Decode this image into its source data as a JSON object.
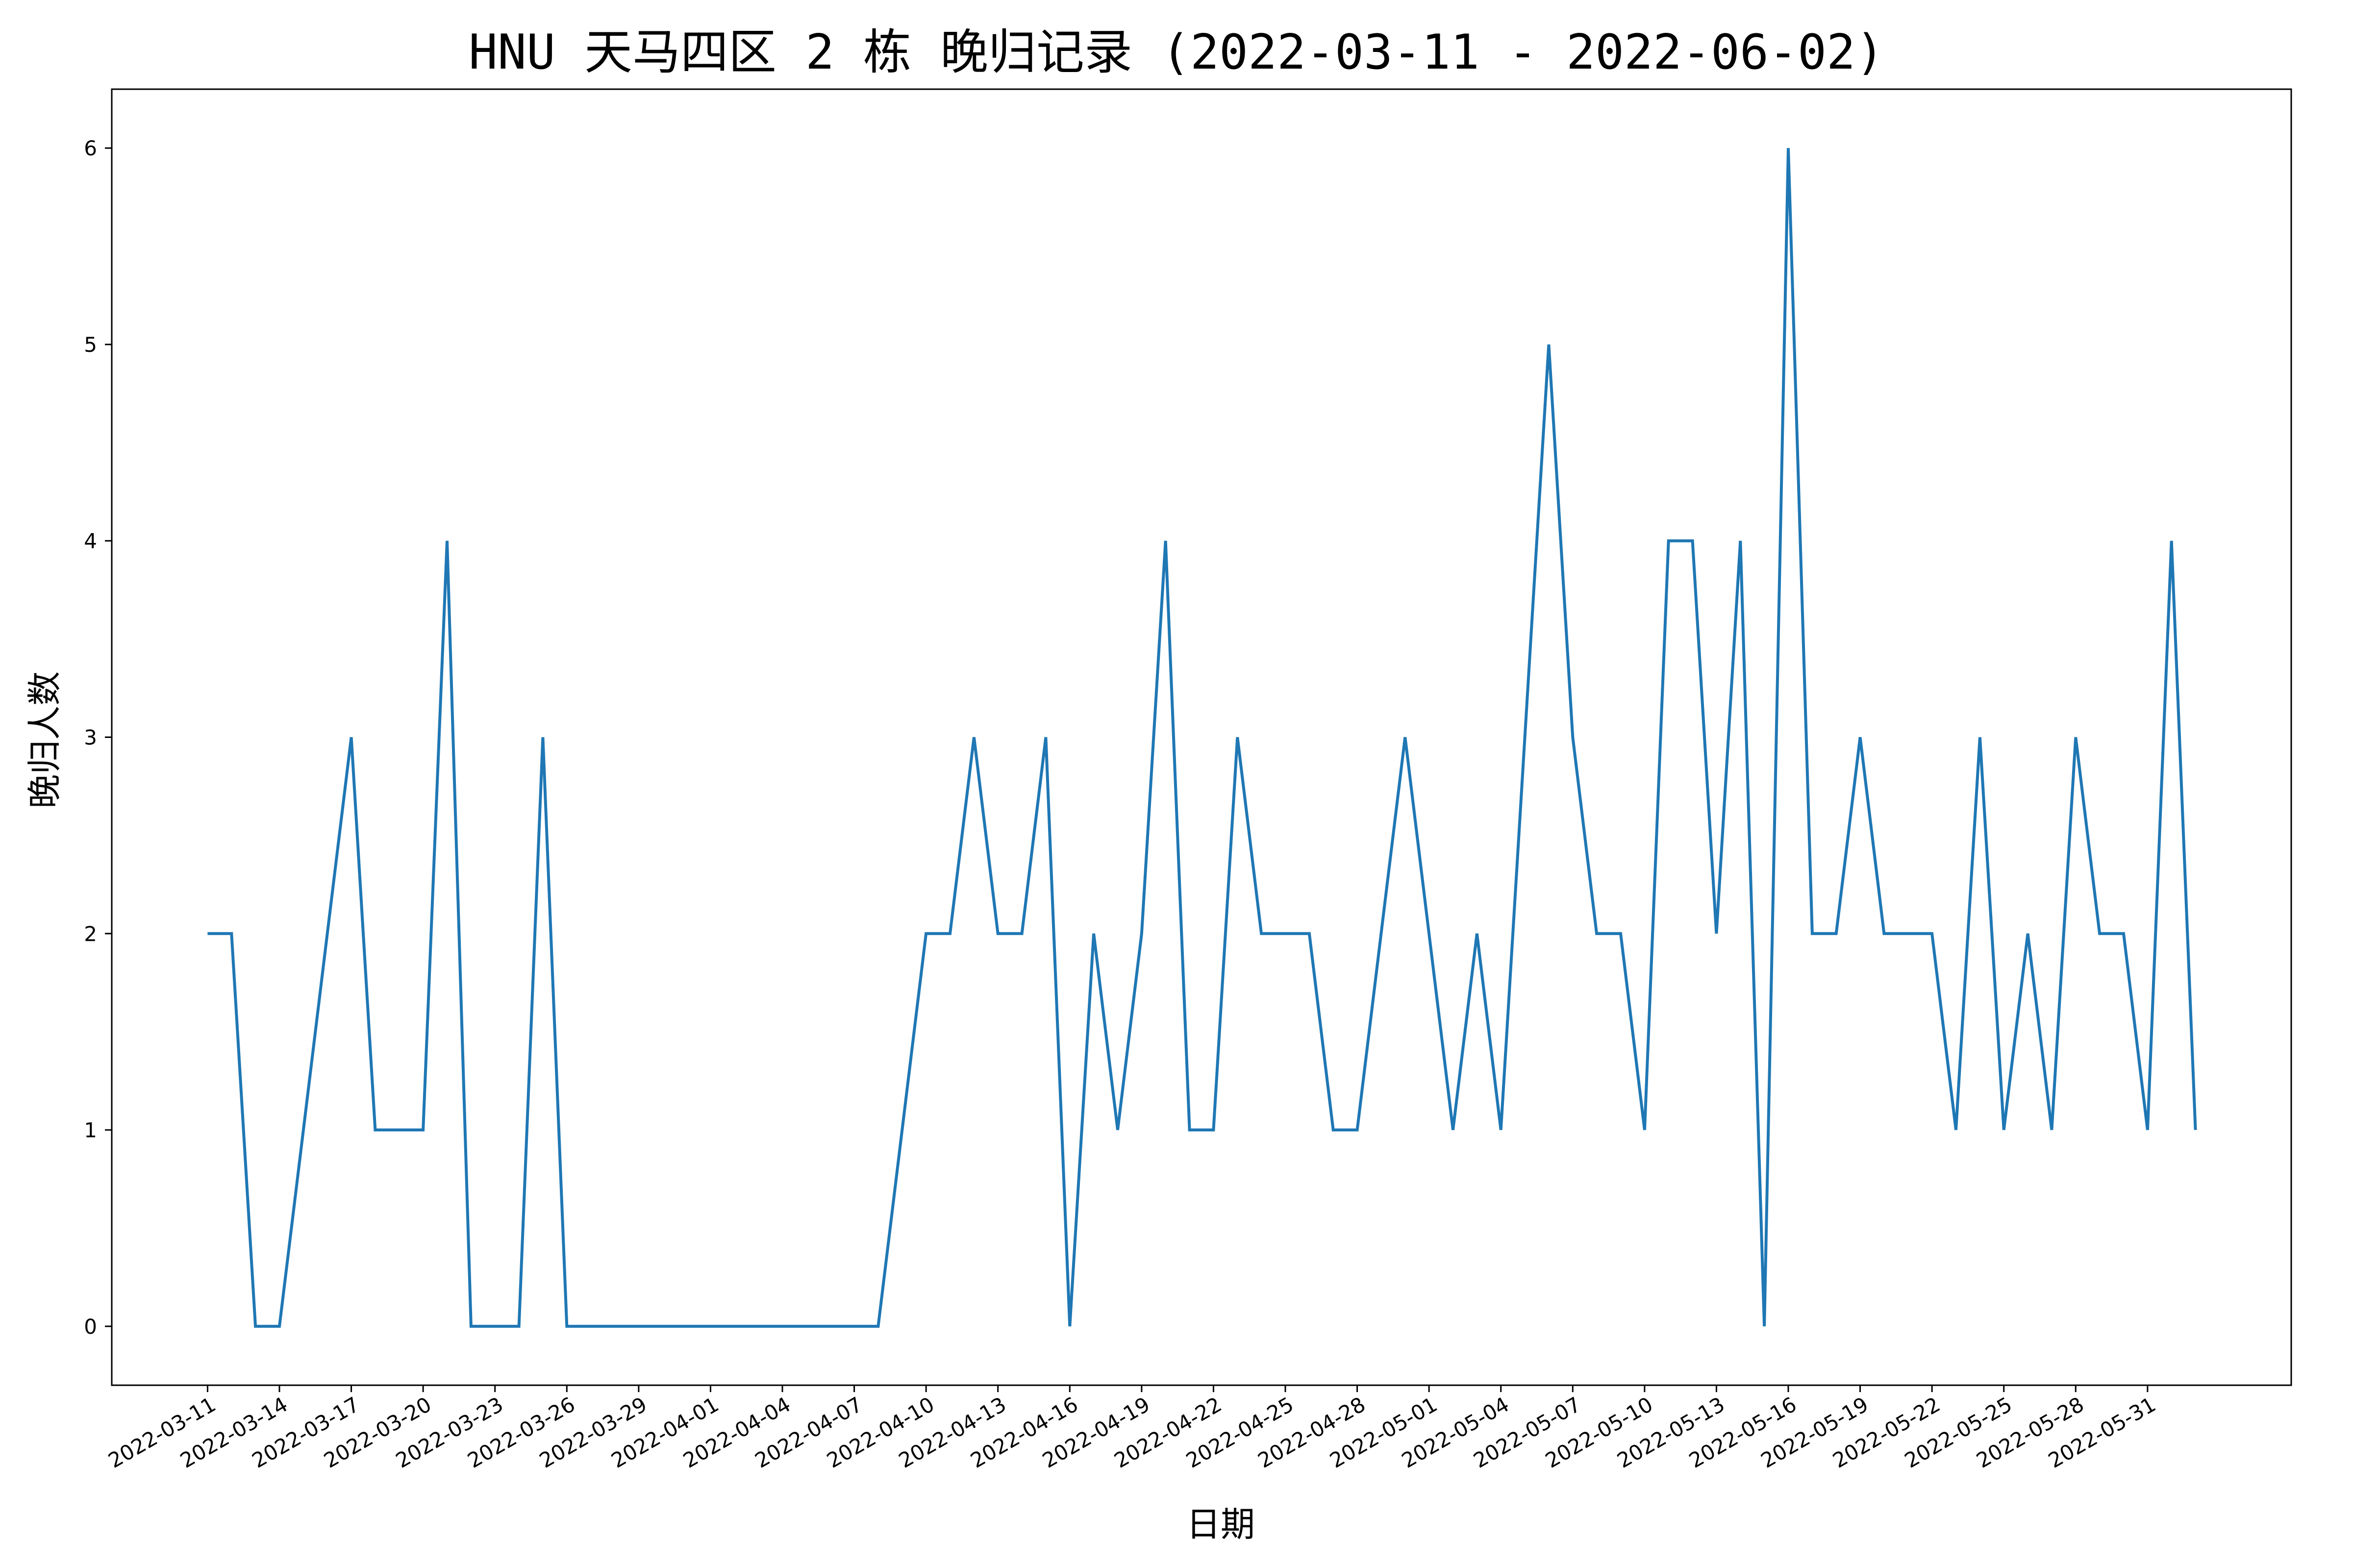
{
  "chart_data": {
    "type": "line",
    "title": "HNU 天马四区 2 栋 晚归记录 (2022-03-11 - 2022-06-02)",
    "xlabel": "日期",
    "ylabel": "晚归人数",
    "x": [
      "2022-03-11",
      "2022-03-12",
      "2022-03-13",
      "2022-03-14",
      "2022-03-15",
      "2022-03-16",
      "2022-03-17",
      "2022-03-18",
      "2022-03-19",
      "2022-03-20",
      "2022-03-21",
      "2022-03-22",
      "2022-03-23",
      "2022-03-24",
      "2022-03-25",
      "2022-03-26",
      "2022-03-27",
      "2022-03-28",
      "2022-03-29",
      "2022-03-30",
      "2022-03-31",
      "2022-04-01",
      "2022-04-02",
      "2022-04-03",
      "2022-04-04",
      "2022-04-05",
      "2022-04-06",
      "2022-04-07",
      "2022-04-08",
      "2022-04-09",
      "2022-04-10",
      "2022-04-11",
      "2022-04-12",
      "2022-04-13",
      "2022-04-14",
      "2022-04-15",
      "2022-04-16",
      "2022-04-17",
      "2022-04-18",
      "2022-04-19",
      "2022-04-20",
      "2022-04-21",
      "2022-04-22",
      "2022-04-23",
      "2022-04-24",
      "2022-04-25",
      "2022-04-26",
      "2022-04-27",
      "2022-04-28",
      "2022-04-29",
      "2022-04-30",
      "2022-05-01",
      "2022-05-02",
      "2022-05-03",
      "2022-05-04",
      "2022-05-05",
      "2022-05-06",
      "2022-05-07",
      "2022-05-08",
      "2022-05-09",
      "2022-05-10",
      "2022-05-11",
      "2022-05-12",
      "2022-05-13",
      "2022-05-14",
      "2022-05-15",
      "2022-05-16",
      "2022-05-17",
      "2022-05-18",
      "2022-05-19",
      "2022-05-20",
      "2022-05-21",
      "2022-05-22",
      "2022-05-23",
      "2022-05-24",
      "2022-05-25",
      "2022-05-26",
      "2022-05-27",
      "2022-05-28",
      "2022-05-29",
      "2022-05-30",
      "2022-05-31",
      "2022-06-01",
      "2022-06-02"
    ],
    "series": [
      {
        "color": "#1f77b4",
        "values": [
          2,
          2,
          0,
          0,
          1,
          2,
          3,
          1,
          1,
          1,
          4,
          0,
          0,
          0,
          3,
          0,
          0,
          0,
          0,
          0,
          0,
          0,
          0,
          0,
          0,
          0,
          0,
          0,
          0,
          1,
          2,
          2,
          3,
          2,
          2,
          3,
          0,
          2,
          1,
          2,
          4,
          1,
          1,
          3,
          2,
          2,
          2,
          1,
          1,
          2,
          3,
          2,
          1,
          2,
          1,
          3,
          5,
          3,
          2,
          2,
          1,
          4,
          4,
          2,
          4,
          0,
          6,
          2,
          2,
          3,
          2,
          2,
          2,
          1,
          3,
          1,
          2,
          1,
          3,
          2,
          2,
          1,
          4,
          1
        ]
      }
    ],
    "xticks": [
      "2022-03-11",
      "2022-03-14",
      "2022-03-17",
      "2022-03-20",
      "2022-03-23",
      "2022-03-26",
      "2022-03-29",
      "2022-04-01",
      "2022-04-04",
      "2022-04-07",
      "2022-04-10",
      "2022-04-13",
      "2022-04-16",
      "2022-04-19",
      "2022-04-22",
      "2022-04-25",
      "2022-04-28",
      "2022-05-01",
      "2022-05-04",
      "2022-05-07",
      "2022-05-10",
      "2022-05-13",
      "2022-05-16",
      "2022-05-19",
      "2022-05-22",
      "2022-05-25",
      "2022-05-28",
      "2022-05-31"
    ],
    "yticks": [
      "0",
      "1",
      "2",
      "3",
      "4",
      "5",
      "6"
    ],
    "ylim": [
      -0.3,
      6.3
    ],
    "xlim": [
      "2022-03-07",
      "2022-06-06"
    ],
    "grid": false,
    "legend": "none"
  }
}
